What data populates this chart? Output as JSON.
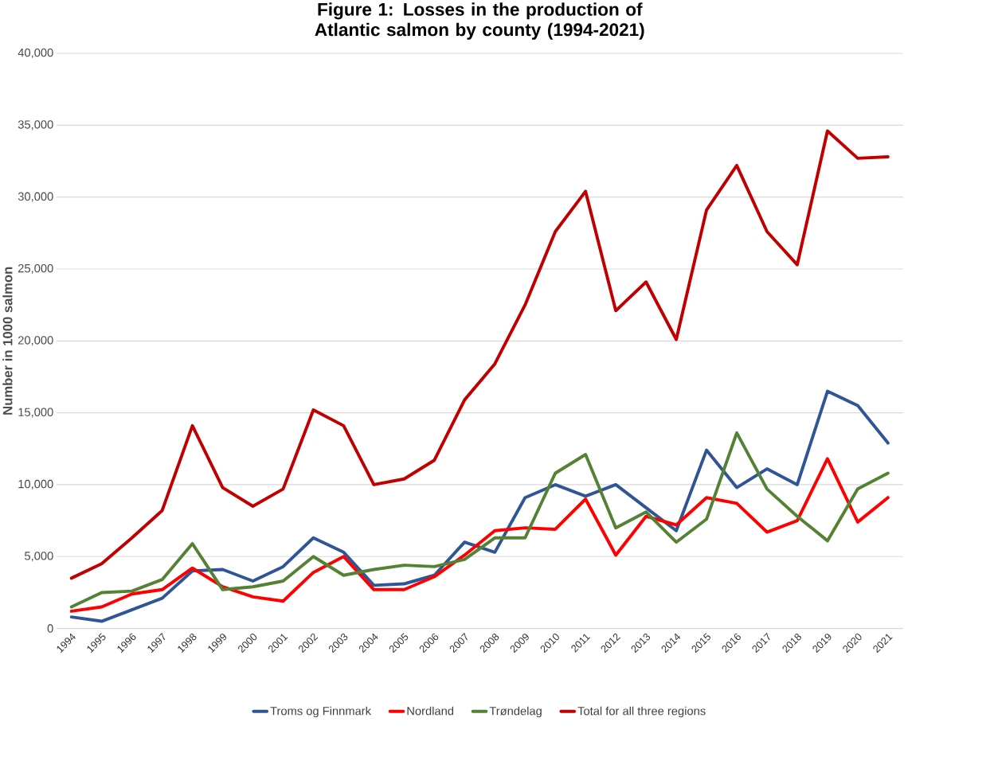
{
  "chart_data": {
    "type": "line",
    "title": "Figure 1: Losses in the production of Atlantic salmon by county (1994-2021)",
    "ylabel": "Number in 1000 salmon",
    "categories": [
      "1994",
      "1995",
      "1996",
      "1997",
      "1998",
      "1999",
      "2000",
      "2001",
      "2002",
      "2003",
      "2004",
      "2005",
      "2006",
      "2007",
      "2008",
      "2009",
      "2010",
      "2011",
      "2012",
      "2013",
      "2014",
      "2015",
      "2016",
      "2017",
      "2018",
      "2019",
      "2020",
      "2021"
    ],
    "series": [
      {
        "name": "Troms og Finnmark",
        "color": "#2f5597",
        "values": [
          800,
          500,
          1300,
          2100,
          4000,
          4100,
          3300,
          4300,
          6300,
          5300,
          3000,
          3100,
          3700,
          6000,
          5300,
          9100,
          10000,
          9200,
          10000,
          8400,
          6800,
          12400,
          9800,
          11100,
          10000,
          16500,
          15500,
          12900
        ]
      },
      {
        "name": "Nordland",
        "color": "#ff0000",
        "values": [
          1200,
          1500,
          2400,
          2700,
          4200,
          2900,
          2200,
          1900,
          3900,
          5000,
          2700,
          2700,
          3600,
          5100,
          6800,
          7000,
          6900,
          9000,
          5100,
          7800,
          7200,
          9100,
          8700,
          6700,
          7500,
          11800,
          7400,
          9100
        ]
      },
      {
        "name": "Trøndelag",
        "color": "#548235",
        "values": [
          1500,
          2500,
          2600,
          3400,
          5900,
          2700,
          2900,
          3300,
          5000,
          3700,
          4100,
          4400,
          4300,
          4800,
          6300,
          6300,
          10800,
          12100,
          7000,
          8100,
          6000,
          7600,
          13600,
          9700,
          7800,
          6100,
          9700,
          10800
        ]
      },
      {
        "name": "Total for all three regions",
        "color": "#c00000",
        "values": [
          3500,
          4500,
          6300,
          8200,
          14100,
          9800,
          8500,
          9700,
          15200,
          14100,
          10000,
          10400,
          11700,
          15900,
          18400,
          22500,
          27600,
          30400,
          22100,
          24100,
          20100,
          29100,
          32200,
          27600,
          25300,
          34600,
          32700,
          32800
        ]
      }
    ],
    "ylim": [
      0,
      40000
    ],
    "yticks": [
      {
        "value": 0,
        "label": "0"
      },
      {
        "value": 5000,
        "label": "5,000"
      },
      {
        "value": 10000,
        "label": "10,000"
      },
      {
        "value": 15000,
        "label": "15,000"
      },
      {
        "value": 20000,
        "label": "20,000"
      },
      {
        "value": 25000,
        "label": "25,000"
      },
      {
        "value": 30000,
        "label": "30,000"
      },
      {
        "value": 35000,
        "label": "35,000"
      },
      {
        "value": 40000,
        "label": "40,000"
      }
    ],
    "grid": "y",
    "legend": "bottom",
    "marker": "none",
    "line_style": "solid"
  }
}
